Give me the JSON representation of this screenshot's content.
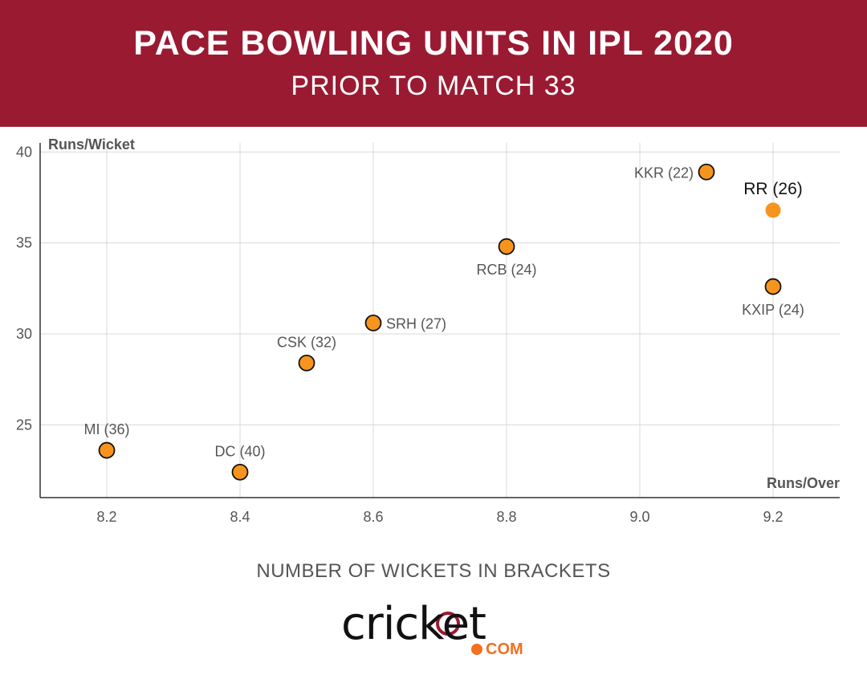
{
  "header": {
    "title": "PACE BOWLING UNITS IN IPL 2020",
    "subtitle": "PRIOR TO MATCH 33"
  },
  "footnote": "NUMBER OF WICKETS IN BRACKETS",
  "logo": {
    "wordmark": "cricket",
    "suffix": "COM"
  },
  "colors": {
    "header_bg": "#9a1a32",
    "point_fill": "#f7941d",
    "point_stroke": "#111111",
    "grid": "#d9d9d9",
    "logo_accent": "#f36f21"
  },
  "chart_data": {
    "type": "scatter",
    "xlabel": "Runs/Over",
    "ylabel": "Runs/Wicket",
    "xlim": [
      8.1,
      9.3
    ],
    "ylim": [
      21,
      40.5
    ],
    "xticks": [
      "8.2",
      "8.4",
      "8.6",
      "8.8",
      "9.0",
      "9.2"
    ],
    "yticks": [
      "25",
      "30",
      "35",
      "40"
    ],
    "grid": true,
    "points": [
      {
        "label": "MI (36)",
        "x": 8.2,
        "y": 23.6,
        "highlight": false,
        "label_pos": "above"
      },
      {
        "label": "DC (40)",
        "x": 8.4,
        "y": 22.4,
        "highlight": false,
        "label_pos": "above"
      },
      {
        "label": "CSK (32)",
        "x": 8.5,
        "y": 28.4,
        "highlight": false,
        "label_pos": "above"
      },
      {
        "label": "SRH (27)",
        "x": 8.6,
        "y": 30.6,
        "highlight": false,
        "label_pos": "right"
      },
      {
        "label": "RCB (24)",
        "x": 8.8,
        "y": 34.8,
        "highlight": false,
        "label_pos": "below"
      },
      {
        "label": "KKR (22)",
        "x": 9.1,
        "y": 38.9,
        "highlight": false,
        "label_pos": "left"
      },
      {
        "label": "RR (26)",
        "x": 9.2,
        "y": 36.8,
        "highlight": true,
        "label_pos": "above"
      },
      {
        "label": "KXIP (24)",
        "x": 9.2,
        "y": 32.6,
        "highlight": false,
        "label_pos": "below"
      }
    ]
  }
}
